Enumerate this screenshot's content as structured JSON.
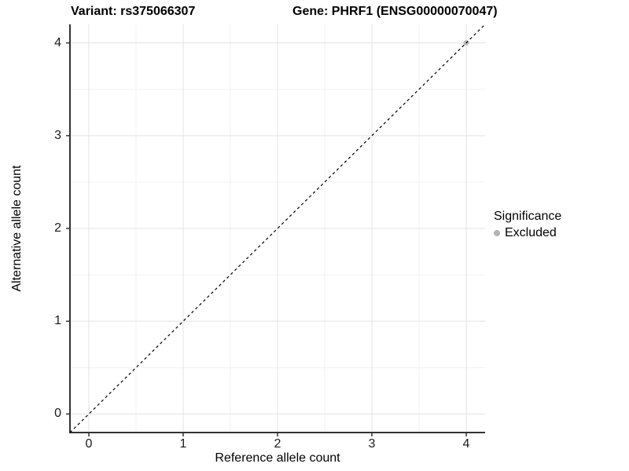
{
  "titles": {
    "variant": "Variant: rs375066307",
    "gene": "Gene: PHRF1 (ENSG00000070047)"
  },
  "axes": {
    "x": {
      "label": "Reference allele count",
      "tick_labels": [
        "0",
        "1",
        "2",
        "3",
        "4"
      ]
    },
    "y": {
      "label": "Alternative allele count",
      "tick_labels": [
        "0",
        "1",
        "2",
        "3",
        "4"
      ]
    }
  },
  "legend": {
    "title": "Significance",
    "items": [
      {
        "label": "Excluded",
        "color": "#b3b3b3"
      }
    ]
  },
  "colors": {
    "background": "#ffffff",
    "axis_line": "#333333",
    "tick_mark": "#333333",
    "grid_major": "#e3e3e3",
    "grid_minor": "#f0f0f0",
    "reference_line": "#000000",
    "excluded_point": "#bdbdbd"
  },
  "chart_data": {
    "type": "scatter",
    "title": "Variant: rs375066307 — Gene: PHRF1 (ENSG00000070047)",
    "xlabel": "Reference allele count",
    "ylabel": "Alternative allele count",
    "xlim": [
      -0.2,
      4.2
    ],
    "ylim": [
      -0.2,
      4.2
    ],
    "x_major_ticks": [
      0,
      1,
      2,
      3,
      4
    ],
    "x_minor_ticks": [
      0.5,
      1.5,
      2.5,
      3.5
    ],
    "y_major_ticks": [
      0,
      1,
      2,
      3,
      4
    ],
    "y_minor_ticks": [
      0.5,
      1.5,
      2.5,
      3.5
    ],
    "grid": true,
    "legend_position": "right",
    "series": [
      {
        "name": "Excluded",
        "color": "#bdbdbd",
        "points": [
          {
            "x": 4,
            "y": 4
          }
        ]
      }
    ],
    "reference_line": {
      "style": "dashed",
      "slope": 1,
      "intercept": 0,
      "from": {
        "x": -0.2,
        "y": -0.2
      },
      "to": {
        "x": 4.2,
        "y": 4.2
      }
    }
  }
}
